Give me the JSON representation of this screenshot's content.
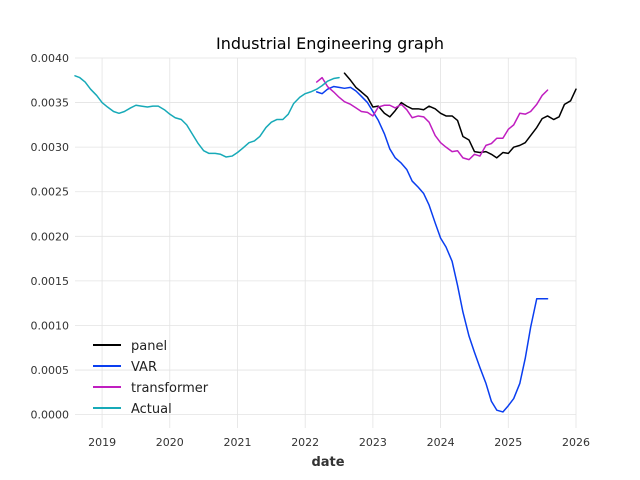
{
  "chart_data": {
    "type": "line",
    "title": "Industrial Engineering graph",
    "xlabel": "date",
    "ylabel": "",
    "xlim": [
      2018.6,
      2026.0
    ],
    "ylim": [
      -0.00015,
      0.004
    ],
    "x_ticks": [
      2019,
      2020,
      2021,
      2022,
      2023,
      2024,
      2025,
      2026
    ],
    "x_tick_labels": [
      "2019",
      "2020",
      "2021",
      "2022",
      "2023",
      "2024",
      "2025",
      "2026"
    ],
    "y_ticks": [
      0.0,
      0.0005,
      0.001,
      0.0015,
      0.002,
      0.0025,
      0.003,
      0.0035,
      0.004
    ],
    "y_tick_labels": [
      "0.0000",
      "0.0005",
      "0.0010",
      "0.0015",
      "0.0020",
      "0.0025",
      "0.0030",
      "0.0035",
      "0.0040"
    ],
    "grid": true,
    "legend_position": "lower-left",
    "series": [
      {
        "name": "panel",
        "color": "#000000",
        "x": [
          2022.58,
          2022.67,
          2022.75,
          2022.83,
          2022.92,
          2023.0,
          2023.08,
          2023.17,
          2023.25,
          2023.33,
          2023.42,
          2023.5,
          2023.58,
          2023.67,
          2023.75,
          2023.83,
          2023.92,
          2024.0,
          2024.08,
          2024.17,
          2024.25,
          2024.33,
          2024.42,
          2024.5,
          2024.58,
          2024.67,
          2024.75,
          2024.83,
          2024.92,
          2025.0,
          2025.08,
          2025.17,
          2025.25,
          2025.33,
          2025.42,
          2025.5,
          2025.58,
          2025.67,
          2025.75,
          2025.83,
          2025.92,
          2026.0
        ],
        "values": [
          0.00383,
          0.00375,
          0.00367,
          0.00362,
          0.00356,
          0.00345,
          0.00346,
          0.00338,
          0.00334,
          0.00341,
          0.0035,
          0.00346,
          0.00343,
          0.00343,
          0.00342,
          0.00346,
          0.00343,
          0.00338,
          0.00335,
          0.00335,
          0.0033,
          0.00312,
          0.00308,
          0.00295,
          0.00294,
          0.00295,
          0.00292,
          0.00288,
          0.00294,
          0.00293,
          0.003,
          0.00302,
          0.00305,
          0.00313,
          0.00322,
          0.00332,
          0.00335,
          0.00331,
          0.00334,
          0.00348,
          0.00352,
          0.00365
        ]
      },
      {
        "name": "VAR",
        "color": "#0a3ef0",
        "x": [
          2022.17,
          2022.25,
          2022.33,
          2022.42,
          2022.5,
          2022.58,
          2022.67,
          2022.75,
          2022.83,
          2022.92,
          2023.0,
          2023.08,
          2023.17,
          2023.25,
          2023.33,
          2023.42,
          2023.5,
          2023.58,
          2023.67,
          2023.75,
          2023.83,
          2023.92,
          2024.0,
          2024.08,
          2024.17,
          2024.25,
          2024.33,
          2024.42,
          2024.5,
          2024.58,
          2024.67,
          2024.75,
          2024.83,
          2024.92,
          2025.0,
          2025.08,
          2025.17,
          2025.25,
          2025.33,
          2025.42,
          2025.5,
          2025.58
        ],
        "values": [
          0.00362,
          0.0036,
          0.00365,
          0.00368,
          0.00367,
          0.00366,
          0.00367,
          0.00363,
          0.00357,
          0.0035,
          0.0034,
          0.0033,
          0.00315,
          0.00298,
          0.00288,
          0.00282,
          0.00275,
          0.00262,
          0.00255,
          0.00248,
          0.00235,
          0.00215,
          0.00198,
          0.00188,
          0.00172,
          0.00145,
          0.00115,
          0.00088,
          0.0007,
          0.00053,
          0.00035,
          0.00015,
          5e-05,
          3e-05,
          0.0001,
          0.00018,
          0.00035,
          0.00063,
          0.00098,
          0.0013,
          0.0013,
          0.0013
        ]
      },
      {
        "name": "transformer",
        "color": "#c01ec0",
        "x": [
          2022.17,
          2022.25,
          2022.33,
          2022.42,
          2022.5,
          2022.58,
          2022.67,
          2022.75,
          2022.83,
          2022.92,
          2023.0,
          2023.08,
          2023.17,
          2023.25,
          2023.33,
          2023.42,
          2023.5,
          2023.58,
          2023.67,
          2023.75,
          2023.83,
          2023.92,
          2024.0,
          2024.08,
          2024.17,
          2024.25,
          2024.33,
          2024.42,
          2024.5,
          2024.58,
          2024.67,
          2024.75,
          2024.83,
          2024.92,
          2025.0,
          2025.08,
          2025.17,
          2025.25,
          2025.33,
          2025.42,
          2025.5,
          2025.58
        ],
        "values": [
          0.00373,
          0.00378,
          0.00368,
          0.00362,
          0.00356,
          0.00351,
          0.00348,
          0.00344,
          0.0034,
          0.00339,
          0.00335,
          0.00345,
          0.00347,
          0.00347,
          0.00344,
          0.00348,
          0.00342,
          0.00333,
          0.00335,
          0.00334,
          0.00328,
          0.00313,
          0.00305,
          0.003,
          0.00295,
          0.00296,
          0.00288,
          0.00286,
          0.00292,
          0.0029,
          0.00302,
          0.00304,
          0.0031,
          0.0031,
          0.0032,
          0.00325,
          0.00338,
          0.00337,
          0.0034,
          0.00348,
          0.00358,
          0.00364
        ]
      },
      {
        "name": "Actual",
        "color": "#17aab8",
        "x": [
          2018.6,
          2018.67,
          2018.75,
          2018.83,
          2018.92,
          2019.0,
          2019.08,
          2019.17,
          2019.25,
          2019.33,
          2019.42,
          2019.5,
          2019.58,
          2019.67,
          2019.75,
          2019.83,
          2019.92,
          2020.0,
          2020.08,
          2020.17,
          2020.25,
          2020.33,
          2020.42,
          2020.5,
          2020.58,
          2020.67,
          2020.75,
          2020.83,
          2020.92,
          2021.0,
          2021.08,
          2021.17,
          2021.25,
          2021.33,
          2021.42,
          2021.5,
          2021.58,
          2021.67,
          2021.75,
          2021.83,
          2021.92,
          2022.0,
          2022.08,
          2022.17,
          2022.25,
          2022.33,
          2022.42,
          2022.5
        ],
        "values": [
          0.0038,
          0.00378,
          0.00373,
          0.00365,
          0.00358,
          0.0035,
          0.00345,
          0.0034,
          0.00338,
          0.0034,
          0.00344,
          0.00347,
          0.00346,
          0.00345,
          0.00346,
          0.00346,
          0.00342,
          0.00337,
          0.00333,
          0.00331,
          0.00325,
          0.00315,
          0.00304,
          0.00296,
          0.00293,
          0.00293,
          0.00292,
          0.00289,
          0.0029,
          0.00294,
          0.00299,
          0.00305,
          0.00307,
          0.00312,
          0.00322,
          0.00328,
          0.00331,
          0.00331,
          0.00337,
          0.00349,
          0.00356,
          0.0036,
          0.00362,
          0.00365,
          0.00369,
          0.00374,
          0.00377,
          0.00378
        ]
      }
    ]
  }
}
